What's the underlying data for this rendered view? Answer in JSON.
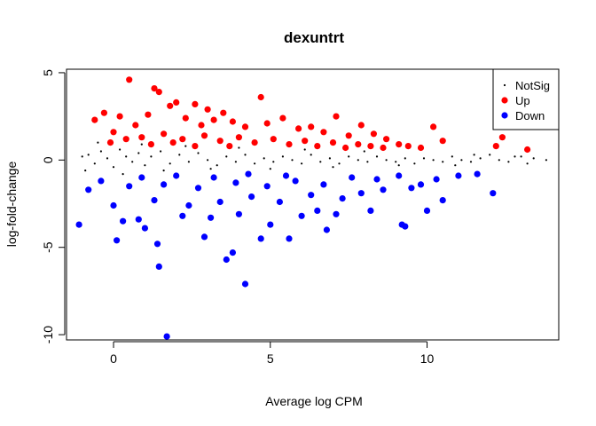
{
  "chart_data": {
    "type": "scatter",
    "title": "dexuntrt",
    "xlabel": "Average log CPM",
    "ylabel": "log-fold-change",
    "xlim": [
      -1.5,
      14.2
    ],
    "ylim": [
      -10.3,
      5.2
    ],
    "xticks": [
      0,
      5,
      10
    ],
    "yticks": [
      -10,
      -5,
      0,
      5
    ],
    "grid": false,
    "legend": {
      "placement": "top-right",
      "entries": [
        {
          "label": "NotSig",
          "color": "#000000",
          "marker": "dot"
        },
        {
          "label": "Up",
          "color": "#ff0000",
          "marker": "circle"
        },
        {
          "label": "Down",
          "color": "#0000ff",
          "marker": "circle"
        }
      ]
    },
    "series": [
      {
        "name": "NotSig",
        "color": "#000000",
        "points": [
          [
            -0.8,
            0.3
          ],
          [
            -0.6,
            -0.2
          ],
          [
            -0.4,
            0.5
          ],
          [
            -0.2,
            0.1
          ],
          [
            0.0,
            -0.4
          ],
          [
            0.2,
            0.6
          ],
          [
            0.4,
            0.2
          ],
          [
            0.6,
            -0.1
          ],
          [
            0.8,
            0.4
          ],
          [
            1.0,
            -0.3
          ],
          [
            1.2,
            0.2
          ],
          [
            1.5,
            0.5
          ],
          [
            1.8,
            -0.2
          ],
          [
            2.1,
            0.3
          ],
          [
            2.4,
            -0.1
          ],
          [
            2.7,
            0.4
          ],
          [
            3.0,
            0.0
          ],
          [
            3.3,
            -0.3
          ],
          [
            3.6,
            0.2
          ],
          [
            3.9,
            -0.1
          ],
          [
            4.2,
            0.3
          ],
          [
            4.5,
            -0.2
          ],
          [
            4.8,
            0.1
          ],
          [
            5.1,
            -0.1
          ],
          [
            5.4,
            0.2
          ],
          [
            5.7,
            0.0
          ],
          [
            6.0,
            -0.2
          ],
          [
            6.3,
            0.3
          ],
          [
            6.6,
            -0.1
          ],
          [
            6.9,
            0.1
          ],
          [
            7.2,
            -0.2
          ],
          [
            7.5,
            0.2
          ],
          [
            7.8,
            0.0
          ],
          [
            8.1,
            -0.1
          ],
          [
            8.4,
            0.2
          ],
          [
            8.7,
            0.0
          ],
          [
            9.0,
            -0.1
          ],
          [
            9.3,
            0.1
          ],
          [
            9.6,
            -0.2
          ],
          [
            9.9,
            0.1
          ],
          [
            10.2,
            0.0
          ],
          [
            10.5,
            -0.1
          ],
          [
            10.8,
            0.2
          ],
          [
            11.1,
            0.0
          ],
          [
            11.4,
            -0.1
          ],
          [
            11.7,
            0.1
          ],
          [
            12.0,
            0.3
          ],
          [
            12.3,
            0.0
          ],
          [
            12.6,
            -0.1
          ],
          [
            13.0,
            0.2
          ],
          [
            13.4,
            0.1
          ],
          [
            13.8,
            0.0
          ],
          [
            11.5,
            0.3
          ],
          [
            10.9,
            -0.3
          ],
          [
            12.8,
            0.2
          ],
          [
            13.2,
            -0.2
          ],
          [
            -1.0,
            0.2
          ],
          [
            -0.9,
            -0.6
          ],
          [
            -0.5,
            1.0
          ],
          [
            0.3,
            -0.8
          ],
          [
            0.9,
            0.9
          ],
          [
            1.6,
            -0.6
          ],
          [
            2.3,
            0.8
          ],
          [
            3.1,
            -0.5
          ],
          [
            4.0,
            0.7
          ],
          [
            5.0,
            -0.5
          ],
          [
            6.1,
            0.6
          ],
          [
            7.0,
            -0.4
          ],
          [
            8.0,
            0.5
          ],
          [
            9.1,
            -0.3
          ]
        ]
      },
      {
        "name": "Up",
        "color": "#ff0000",
        "points": [
          [
            0.5,
            4.6
          ],
          [
            1.3,
            4.1
          ],
          [
            1.45,
            3.9
          ],
          [
            2.0,
            3.3
          ],
          [
            2.6,
            3.2
          ],
          [
            1.8,
            3.1
          ],
          [
            3.0,
            2.9
          ],
          [
            3.5,
            2.7
          ],
          [
            4.7,
            3.6
          ],
          [
            0.2,
            2.5
          ],
          [
            -0.6,
            2.3
          ],
          [
            -0.3,
            2.7
          ],
          [
            0.7,
            2.0
          ],
          [
            1.1,
            2.6
          ],
          [
            2.3,
            2.4
          ],
          [
            2.8,
            2.0
          ],
          [
            3.2,
            2.3
          ],
          [
            3.8,
            2.2
          ],
          [
            4.2,
            1.9
          ],
          [
            4.9,
            2.1
          ],
          [
            5.4,
            2.4
          ],
          [
            5.9,
            1.8
          ],
          [
            6.3,
            1.9
          ],
          [
            6.7,
            1.6
          ],
          [
            7.1,
            2.5
          ],
          [
            7.5,
            1.4
          ],
          [
            7.9,
            2.0
          ],
          [
            8.3,
            1.5
          ],
          [
            8.7,
            1.2
          ],
          [
            9.1,
            0.9
          ],
          [
            9.4,
            0.8
          ],
          [
            9.8,
            0.7
          ],
          [
            10.2,
            1.9
          ],
          [
            10.5,
            1.1
          ],
          [
            12.2,
            0.8
          ],
          [
            12.4,
            1.3
          ],
          [
            13.2,
            0.6
          ],
          [
            0.0,
            1.6
          ],
          [
            0.9,
            1.3
          ],
          [
            1.6,
            1.5
          ],
          [
            2.2,
            1.2
          ],
          [
            2.9,
            1.4
          ],
          [
            3.4,
            1.1
          ],
          [
            4.0,
            1.3
          ],
          [
            4.5,
            1.0
          ],
          [
            5.1,
            1.2
          ],
          [
            5.6,
            0.9
          ],
          [
            6.1,
            1.1
          ],
          [
            6.5,
            0.8
          ],
          [
            7.0,
            1.0
          ],
          [
            7.4,
            0.7
          ],
          [
            7.8,
            0.9
          ],
          [
            8.2,
            0.8
          ],
          [
            8.6,
            0.7
          ],
          [
            -0.1,
            1.0
          ],
          [
            0.4,
            1.2
          ],
          [
            1.2,
            0.9
          ],
          [
            1.9,
            1.0
          ],
          [
            2.6,
            0.8
          ],
          [
            3.7,
            0.8
          ]
        ]
      },
      {
        "name": "Down",
        "color": "#0000ff",
        "points": [
          [
            1.7,
            -10.1
          ],
          [
            4.2,
            -7.1
          ],
          [
            1.45,
            -6.1
          ],
          [
            3.6,
            -5.7
          ],
          [
            3.8,
            -5.3
          ],
          [
            1.4,
            -4.8
          ],
          [
            -1.1,
            -3.7
          ],
          [
            0.1,
            -4.6
          ],
          [
            2.9,
            -4.4
          ],
          [
            4.7,
            -4.5
          ],
          [
            5.6,
            -4.5
          ],
          [
            6.8,
            -4.0
          ],
          [
            0.3,
            -3.5
          ],
          [
            0.8,
            -3.4
          ],
          [
            1.0,
            -3.9
          ],
          [
            2.2,
            -3.2
          ],
          [
            3.1,
            -3.3
          ],
          [
            4.0,
            -3.1
          ],
          [
            5.0,
            -3.7
          ],
          [
            6.0,
            -3.2
          ],
          [
            6.5,
            -2.9
          ],
          [
            7.1,
            -3.1
          ],
          [
            8.2,
            -2.9
          ],
          [
            9.2,
            -3.7
          ],
          [
            9.3,
            -3.8
          ],
          [
            10.0,
            -2.9
          ],
          [
            10.5,
            -2.3
          ],
          [
            12.1,
            -1.9
          ],
          [
            0.0,
            -2.6
          ],
          [
            1.3,
            -2.3
          ],
          [
            2.4,
            -2.6
          ],
          [
            3.4,
            -2.4
          ],
          [
            4.4,
            -2.1
          ],
          [
            5.3,
            -2.4
          ],
          [
            6.3,
            -2.0
          ],
          [
            7.3,
            -2.2
          ],
          [
            7.9,
            -1.9
          ],
          [
            8.6,
            -1.7
          ],
          [
            9.5,
            -1.6
          ],
          [
            9.8,
            -1.4
          ],
          [
            10.3,
            -1.1
          ],
          [
            11.0,
            -0.9
          ],
          [
            11.6,
            -0.8
          ],
          [
            -0.8,
            -1.7
          ],
          [
            -0.4,
            -1.2
          ],
          [
            0.5,
            -1.5
          ],
          [
            1.6,
            -1.4
          ],
          [
            2.7,
            -1.6
          ],
          [
            3.9,
            -1.3
          ],
          [
            4.9,
            -1.5
          ],
          [
            5.8,
            -1.2
          ],
          [
            6.7,
            -1.4
          ],
          [
            7.6,
            -1.0
          ],
          [
            8.4,
            -1.1
          ],
          [
            9.1,
            -0.9
          ],
          [
            0.9,
            -1.0
          ],
          [
            2.0,
            -0.9
          ],
          [
            3.2,
            -1.0
          ],
          [
            4.3,
            -0.8
          ],
          [
            5.5,
            -0.9
          ]
        ]
      }
    ]
  }
}
